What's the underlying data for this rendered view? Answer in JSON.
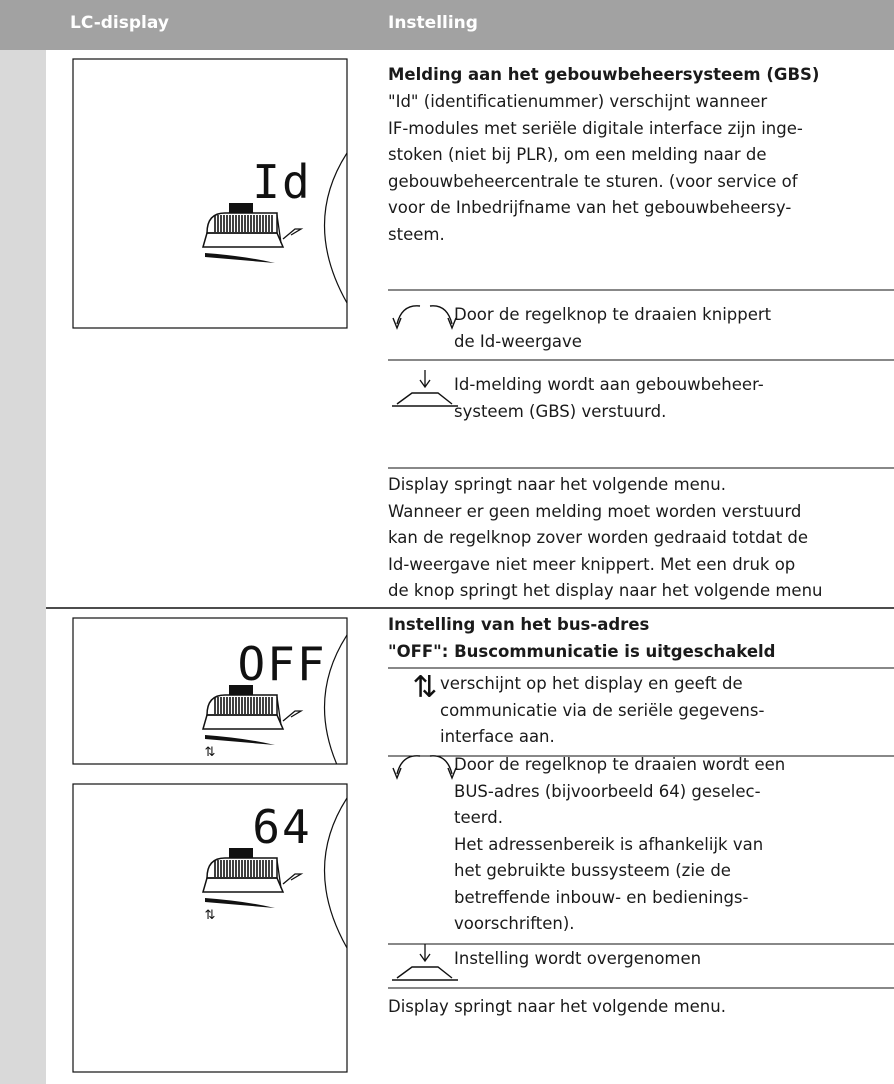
{
  "header": {
    "col1": "LC-display",
    "col2": "Instelling"
  },
  "sections": [
    {
      "displays": [
        {
          "label": "Id"
        }
      ],
      "title": [
        "Melding aan het gebouwbeheersysteem (GBS)"
      ],
      "intro": [
        "\"Id\" (identificatienummer) verschijnt wanneer",
        "IF-modules met seriële digitale interface zijn inge-",
        "stoken (niet bij PLR), om een melding naar de",
        "gebouwbeheercentrale te sturen. (voor service of",
        "voor de Inbedrijfname van het gebouwbeheersy-",
        "steem."
      ],
      "rows": [
        {
          "icon": "rotate",
          "text": [
            "Door de regelknop te draaien knippert",
            "de Id-weergave"
          ]
        },
        {
          "icon": "press",
          "text": [
            "Id-melding wordt aan gebouwbeheer-",
            "systeem (GBS) verstuurd."
          ]
        }
      ],
      "outro": [
        "Display springt naar het volgende menu.",
        "Wanneer er geen melding moet worden verstuurd",
        "kan de regelknop zover worden gedraaid totdat de",
        "Id-weergave niet meer knippert. Met een druk op",
        "de knop springt het display naar het volgende menu"
      ]
    },
    {
      "displays": [
        {
          "label": "OFF",
          "symbol": "⇅"
        },
        {
          "label": "64",
          "symbol": "⇅"
        }
      ],
      "title": [
        "Instelling van het bus-adres",
        "\"OFF\": Buscommunicatie is uitgeschakeld"
      ],
      "rows": [
        {
          "symbol": "⇅",
          "text": [
            "verschijnt op het display en geeft de",
            "communicatie via de seriële gegevens-",
            "interface aan."
          ]
        },
        {
          "icon": "rotate",
          "text": [
            "Door de regelknop te draaien wordt een",
            "BUS-adres (bijvoorbeeld 64) geselec-",
            "teerd.",
            "Het adressenbereik is afhankelijk van",
            "het gebruikte bussysteem (zie de",
            "betreffende inbouw- en bedienings-",
            "voorschriften)."
          ]
        },
        {
          "icon": "press",
          "text": [
            "Instelling wordt overgenomen"
          ]
        }
      ],
      "outro": [
        "Display springt naar het volgende menu."
      ]
    }
  ]
}
